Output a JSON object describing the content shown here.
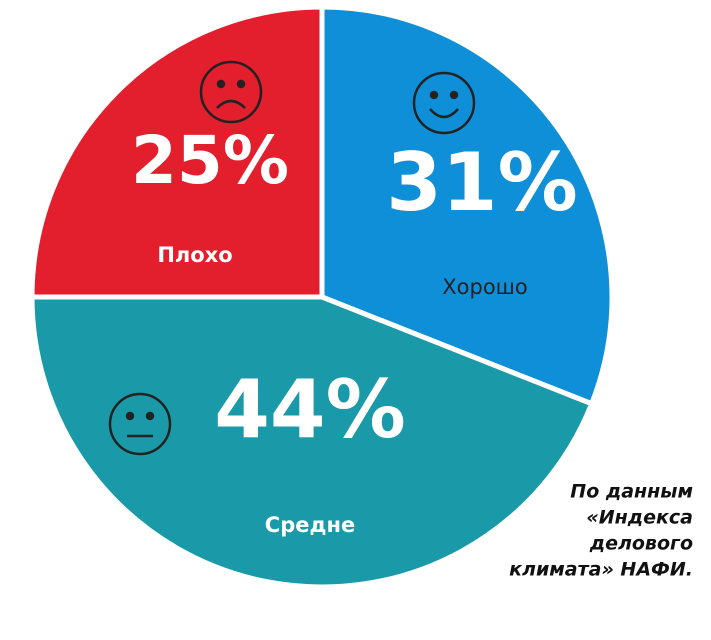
{
  "chart_data": {
    "type": "pie",
    "categories": [
      "Хорошо",
      "Средне",
      "Плохо"
    ],
    "values": [
      31,
      44,
      25
    ],
    "value_labels": [
      "31%",
      "44%",
      "25%"
    ],
    "colors": [
      "#0f8fd8",
      "#1a9aa8",
      "#e31e2d"
    ],
    "source": [
      "По данным",
      "«Индекса",
      "делового",
      "климата» НАФИ."
    ]
  }
}
